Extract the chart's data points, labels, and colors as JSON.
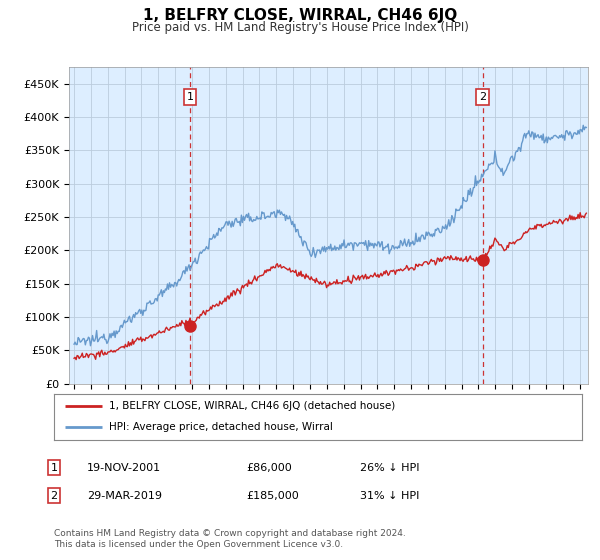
{
  "title": "1, BELFRY CLOSE, WIRRAL, CH46 6JQ",
  "subtitle": "Price paid vs. HM Land Registry's House Price Index (HPI)",
  "ylabel_ticks": [
    "£0",
    "£50K",
    "£100K",
    "£150K",
    "£200K",
    "£250K",
    "£300K",
    "£350K",
    "£400K",
    "£450K"
  ],
  "ytick_values": [
    0,
    50000,
    100000,
    150000,
    200000,
    250000,
    300000,
    350000,
    400000,
    450000
  ],
  "ylim": [
    0,
    475000
  ],
  "xlim_start": 1994.7,
  "xlim_end": 2025.5,
  "hpi_color": "#6699cc",
  "price_color": "#cc2222",
  "vline_color": "#cc3333",
  "chart_bg": "#ddeeff",
  "marker1_date": 2001.89,
  "marker1_price": 86000,
  "marker1_label": "1",
  "marker2_date": 2019.24,
  "marker2_price": 185000,
  "marker2_label": "2",
  "legend_label1": "1, BELFRY CLOSE, WIRRAL, CH46 6JQ (detached house)",
  "legend_label2": "HPI: Average price, detached house, Wirral",
  "table_row1_num": "1",
  "table_row1_date": "19-NOV-2001",
  "table_row1_price": "£86,000",
  "table_row1_hpi": "26% ↓ HPI",
  "table_row2_num": "2",
  "table_row2_date": "29-MAR-2019",
  "table_row2_price": "£185,000",
  "table_row2_hpi": "31% ↓ HPI",
  "footer": "Contains HM Land Registry data © Crown copyright and database right 2024.\nThis data is licensed under the Open Government Licence v3.0.",
  "background_color": "#ffffff",
  "grid_color": "#bbccdd"
}
